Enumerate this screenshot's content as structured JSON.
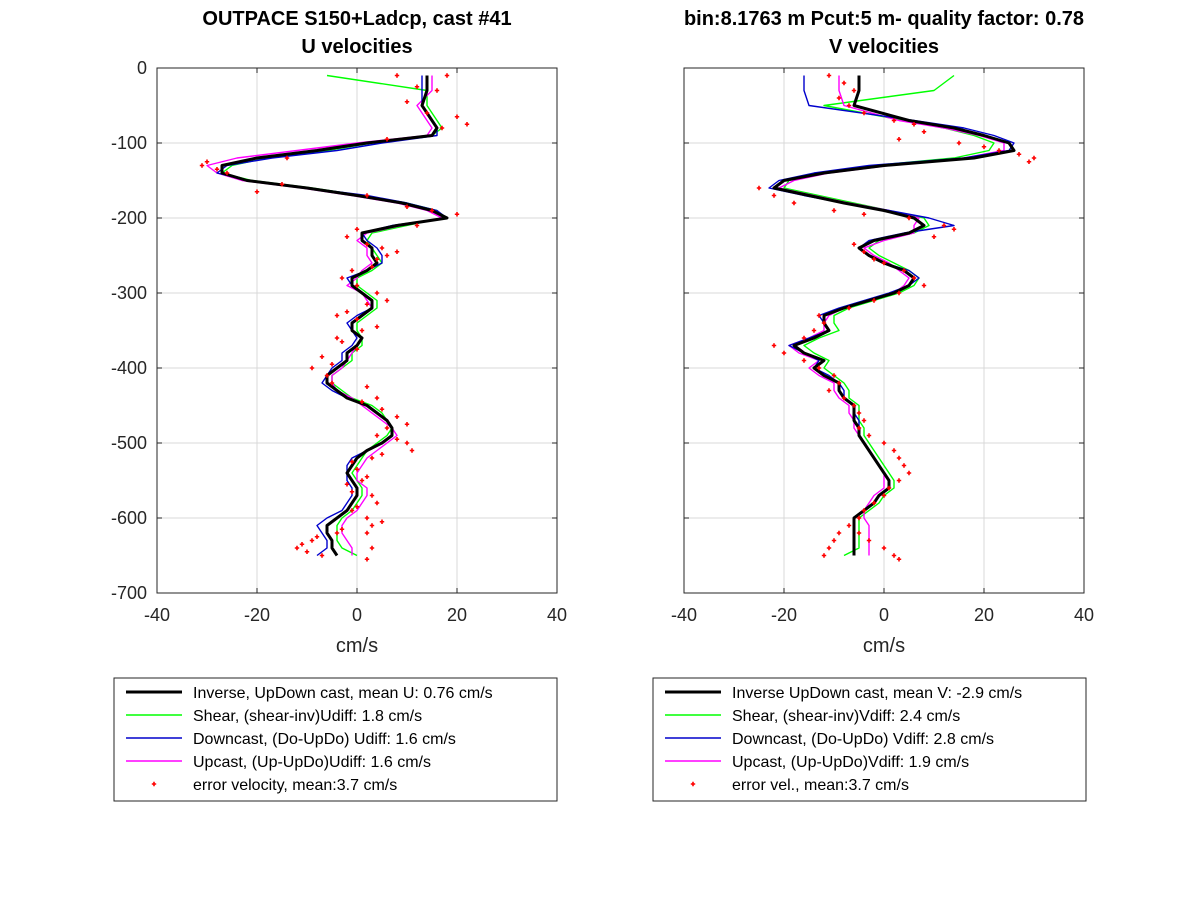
{
  "figure": {
    "left_title": [
      "OUTPACE S150+Ladcp, cast #41",
      "U velocities"
    ],
    "right_title": [
      "bin:8.1763 m  Pcut:5 m- quality factor:  0.78",
      "V velocities"
    ],
    "colors": {
      "inverse": "#000000",
      "shear": "#00ff00",
      "downcast": "#0000cc",
      "upcast": "#ff00ff",
      "error": "#ff0000",
      "grid": "#d9d9d9"
    }
  },
  "chart_data": [
    {
      "type": "line",
      "title": "U velocities",
      "xlabel": "cm/s",
      "ylabel": "",
      "xlim": [
        -40,
        40
      ],
      "ylim": [
        -700,
        0
      ],
      "xticks": [
        -40,
        -20,
        0,
        20,
        40
      ],
      "yticks": [
        0,
        -100,
        -200,
        -300,
        -400,
        -500,
        -600,
        -700
      ],
      "grid": true,
      "legend_position": "below",
      "depth": [
        -10,
        -30,
        -50,
        -70,
        -80,
        -90,
        -100,
        -110,
        -120,
        -130,
        -140,
        -150,
        -160,
        -170,
        -180,
        -190,
        -200,
        -210,
        -220,
        -230,
        -240,
        -250,
        -260,
        -270,
        -280,
        -290,
        -300,
        -310,
        -320,
        -330,
        -340,
        -350,
        -360,
        -370,
        -380,
        -390,
        -400,
        -410,
        -420,
        -430,
        -440,
        -450,
        -460,
        -470,
        -480,
        -490,
        -500,
        -510,
        -520,
        -530,
        -540,
        -550,
        -560,
        -570,
        -580,
        -590,
        -600,
        -610,
        -620,
        -630,
        -640,
        -650
      ],
      "series": [
        {
          "name": "Inverse, UpDown cast, mean U:  0.76 cm/s",
          "values": [
            14,
            14,
            13,
            15,
            16,
            15,
            2,
            -8,
            -20,
            -27,
            -27,
            -22,
            -10,
            0,
            9,
            15,
            18,
            8,
            1,
            1,
            3,
            3,
            4,
            2,
            -1,
            -1,
            1,
            3,
            3,
            1,
            -1,
            -1,
            1,
            0,
            -2,
            -2,
            -4,
            -6,
            -6,
            -4,
            -2,
            2,
            4,
            6,
            7,
            7,
            5,
            2,
            0,
            -1,
            -2,
            -1,
            0,
            0,
            -1,
            -2,
            -4,
            -6,
            -6,
            -5,
            -5,
            -4
          ]
        },
        {
          "name": "Shear, (shear-inv)Udiff:  1.8 cm/s",
          "values": [
            -6,
            14,
            14,
            16,
            17,
            15,
            3,
            -6,
            -18,
            -25,
            -27,
            -21,
            -9,
            1,
            10,
            16,
            17,
            10,
            3,
            2,
            3,
            4,
            5,
            3,
            0,
            0,
            2,
            4,
            4,
            2,
            0,
            0,
            1,
            1,
            -1,
            -1,
            -3,
            -5,
            -5,
            -3,
            -1,
            3,
            5,
            6,
            7,
            6,
            4,
            2,
            1,
            0,
            -1,
            0,
            1,
            1,
            0,
            -1,
            -3,
            -4,
            -4,
            -4,
            -3,
            0
          ]
        },
        {
          "name": "Downcast, (Do-UpDo) Udiff:  1.6 cm/s",
          "values": [
            13,
            13,
            13,
            15,
            16,
            16,
            5,
            -4,
            -17,
            -26,
            -28,
            -22,
            -10,
            2,
            10,
            16,
            18,
            7,
            1,
            2,
            4,
            5,
            5,
            2,
            -2,
            -1,
            1,
            3,
            3,
            0,
            -2,
            -1,
            0,
            -1,
            -3,
            -3,
            -5,
            -6,
            -7,
            -5,
            -2,
            2,
            4,
            6,
            7,
            7,
            5,
            2,
            -1,
            -2,
            -2,
            -2,
            -1,
            -1,
            -2,
            -3,
            -6,
            -8,
            -7,
            -6,
            -6,
            -8
          ]
        },
        {
          "name": "Upcast, (Up-UpDo)Udiff:  1.6 cm/s",
          "values": [
            15,
            15,
            12,
            14,
            15,
            14,
            0,
            -12,
            -24,
            -30,
            -28,
            -23,
            -11,
            -1,
            8,
            14,
            17,
            9,
            2,
            0,
            2,
            2,
            3,
            1,
            0,
            -2,
            1,
            2,
            3,
            1,
            -1,
            -1,
            1,
            0,
            -1,
            -2,
            -3,
            -5,
            -5,
            -4,
            -1,
            1,
            3,
            5,
            7,
            8,
            6,
            4,
            2,
            1,
            0,
            0,
            2,
            2,
            1,
            0,
            -2,
            -3,
            -3,
            -2,
            -1,
            -1
          ]
        },
        {
          "name": "error velocity, mean:3.7 cm/s",
          "type": "scatter",
          "x": [
            8,
            18,
            12,
            16,
            10,
            14,
            20,
            22,
            17,
            6,
            -14,
            -30,
            -31,
            -28,
            -26,
            -15,
            -20,
            2,
            10,
            15,
            20,
            12,
            0,
            -2,
            2,
            5,
            8,
            6,
            4,
            3,
            -1,
            -3,
            0,
            4,
            6,
            2,
            -2,
            -4,
            0,
            4,
            1,
            -4,
            -3,
            0,
            -7,
            -5,
            -9,
            -6,
            -5,
            2,
            4,
            1,
            5,
            8,
            10,
            6,
            4,
            8,
            10,
            11,
            5,
            3,
            -1,
            0,
            2,
            1,
            -2,
            -1,
            3,
            4,
            0,
            -1,
            2,
            5,
            3,
            -3,
            -4,
            -8,
            -9,
            -11,
            -12,
            -10,
            -7,
            2,
            3,
            2
          ],
          "y": [
            -10,
            -10,
            -25,
            -30,
            -45,
            -60,
            -65,
            -75,
            -80,
            -95,
            -120,
            -125,
            -130,
            -135,
            -140,
            -155,
            -165,
            -170,
            -185,
            -190,
            -195,
            -210,
            -215,
            -225,
            -235,
            -240,
            -245,
            -250,
            -255,
            -265,
            -270,
            -280,
            -290,
            -300,
            -310,
            -315,
            -325,
            -330,
            -335,
            -345,
            -350,
            -360,
            -365,
            -375,
            -385,
            -395,
            -400,
            -410,
            -420,
            -425,
            -440,
            -445,
            -455,
            -465,
            -475,
            -480,
            -490,
            -495,
            -500,
            -510,
            -515,
            -520,
            -525,
            -535,
            -545,
            -550,
            -555,
            -565,
            -570,
            -580,
            -585,
            -590,
            -600,
            -605,
            -610,
            -615,
            -620,
            -625,
            -630,
            -635,
            -640,
            -645,
            -650,
            -620,
            -640,
            -655
          ]
        }
      ]
    },
    {
      "type": "line",
      "title": "V velocities",
      "xlabel": "cm/s",
      "ylabel": "",
      "xlim": [
        -40,
        40
      ],
      "ylim": [
        -700,
        0
      ],
      "xticks": [
        -40,
        -20,
        0,
        20,
        40
      ],
      "yticks": [
        0,
        -100,
        -200,
        -300,
        -400,
        -500,
        -600,
        -700
      ],
      "grid": true,
      "legend_position": "below",
      "depth": [
        -10,
        -30,
        -50,
        -70,
        -80,
        -90,
        -100,
        -110,
        -120,
        -130,
        -140,
        -150,
        -160,
        -170,
        -180,
        -190,
        -200,
        -210,
        -220,
        -230,
        -240,
        -250,
        -260,
        -270,
        -280,
        -290,
        -300,
        -310,
        -320,
        -330,
        -340,
        -350,
        -360,
        -370,
        -380,
        -390,
        -400,
        -410,
        -420,
        -430,
        -440,
        -450,
        -460,
        -470,
        -480,
        -490,
        -500,
        -510,
        -520,
        -530,
        -540,
        -550,
        -560,
        -570,
        -580,
        -590,
        -600,
        -610,
        -620,
        -630,
        -640,
        -650
      ],
      "series": [
        {
          "name": "Inverse UpDown cast, mean V:  -2.9 cm/s",
          "values": [
            -5,
            -5,
            -6,
            5,
            14,
            20,
            25,
            26,
            18,
            0,
            -12,
            -20,
            -22,
            -15,
            -8,
            0,
            6,
            8,
            5,
            -2,
            -5,
            -3,
            0,
            4,
            6,
            5,
            2,
            -3,
            -8,
            -12,
            -12,
            -11,
            -14,
            -18,
            -16,
            -12,
            -14,
            -12,
            -9,
            -9,
            -8,
            -6,
            -6,
            -6,
            -5,
            -5,
            -4,
            -3,
            -2,
            -1,
            0,
            1,
            1,
            -1,
            -2,
            -4,
            -6,
            -6,
            -6,
            -6,
            -6,
            -6
          ]
        },
        {
          "name": "Shear, (shear-inv)Vdiff:  2.4 cm/s",
          "values": [
            14,
            10,
            -12,
            4,
            12,
            18,
            22,
            21,
            14,
            -2,
            -12,
            -19,
            -20,
            -13,
            -6,
            1,
            8,
            9,
            6,
            -1,
            -3,
            -1,
            2,
            5,
            7,
            6,
            3,
            -2,
            -7,
            -10,
            -10,
            -9,
            -13,
            -16,
            -14,
            -11,
            -12,
            -10,
            -8,
            -7,
            -7,
            -5,
            -5,
            -5,
            -4,
            -4,
            -3,
            -2,
            -1,
            0,
            1,
            2,
            2,
            0,
            -1,
            -3,
            -5,
            -5,
            -5,
            -5,
            -5,
            -8
          ]
        },
        {
          "name": "Downcast, (Do-UpDo) Vdiff:  2.8 cm/s",
          "values": [
            -16,
            -16,
            -15,
            6,
            16,
            22,
            26,
            25,
            16,
            -3,
            -14,
            -21,
            -23,
            -16,
            -8,
            1,
            9,
            14,
            4,
            -3,
            -5,
            -3,
            0,
            5,
            7,
            5,
            1,
            -4,
            -9,
            -13,
            -12,
            -11,
            -15,
            -19,
            -16,
            -13,
            -14,
            -11,
            -9,
            -8,
            -8,
            -6,
            -6,
            -5,
            -5,
            -5,
            -4,
            -3,
            -2,
            -1,
            0,
            1,
            1,
            -1,
            -2,
            -4,
            -6,
            -6,
            -6,
            -6,
            -6,
            -6
          ]
        },
        {
          "name": "Upcast, (Up-UpDo)Vdiff:  1.9 cm/s",
          "values": [
            -9,
            -9,
            -8,
            3,
            12,
            19,
            24,
            24,
            16,
            1,
            -11,
            -18,
            -21,
            -14,
            -7,
            1,
            7,
            6,
            6,
            0,
            -4,
            -2,
            1,
            3,
            5,
            4,
            2,
            -3,
            -8,
            -11,
            -12,
            -12,
            -15,
            -19,
            -17,
            -13,
            -15,
            -13,
            -10,
            -10,
            -9,
            -7,
            -7,
            -6,
            -6,
            -5,
            -4,
            -3,
            -2,
            -1,
            0,
            0,
            0,
            -2,
            -3,
            -4,
            -4,
            -3,
            -3,
            -3,
            -3,
            -3
          ]
        },
        {
          "name": "error vel., mean:3.7 cm/s",
          "type": "scatter",
          "x": [
            -11,
            -8,
            -6,
            -9,
            -7,
            -4,
            2,
            6,
            8,
            3,
            15,
            20,
            23,
            27,
            30,
            29,
            -25,
            -22,
            -18,
            -10,
            -4,
            5,
            12,
            14,
            10,
            -6,
            -4,
            -2,
            0,
            4,
            6,
            8,
            3,
            -2,
            -7,
            -13,
            -12,
            -14,
            -16,
            -22,
            -20,
            -16,
            -13,
            -10,
            -9,
            -11,
            -8,
            -6,
            -5,
            -4,
            -5,
            -3,
            0,
            2,
            3,
            4,
            5,
            3,
            1,
            0,
            -2,
            -4,
            -5,
            -7,
            -9,
            -10,
            -11,
            -12,
            -5,
            -3,
            0,
            2,
            3
          ],
          "y": [
            -10,
            -20,
            -30,
            -40,
            -50,
            -60,
            -70,
            -75,
            -85,
            -95,
            -100,
            -105,
            -110,
            -115,
            -120,
            -125,
            -160,
            -170,
            -180,
            -190,
            -195,
            -200,
            -210,
            -215,
            -225,
            -235,
            -245,
            -255,
            -260,
            -270,
            -280,
            -290,
            -300,
            -310,
            -320,
            -330,
            -340,
            -350,
            -360,
            -370,
            -380,
            -390,
            -400,
            -410,
            -420,
            -430,
            -440,
            -450,
            -460,
            -470,
            -480,
            -490,
            -500,
            -510,
            -520,
            -530,
            -540,
            -550,
            -560,
            -570,
            -580,
            -590,
            -600,
            -610,
            -620,
            -630,
            -640,
            -650,
            -620,
            -630,
            -640,
            -650,
            -655
          ]
        }
      ]
    }
  ]
}
